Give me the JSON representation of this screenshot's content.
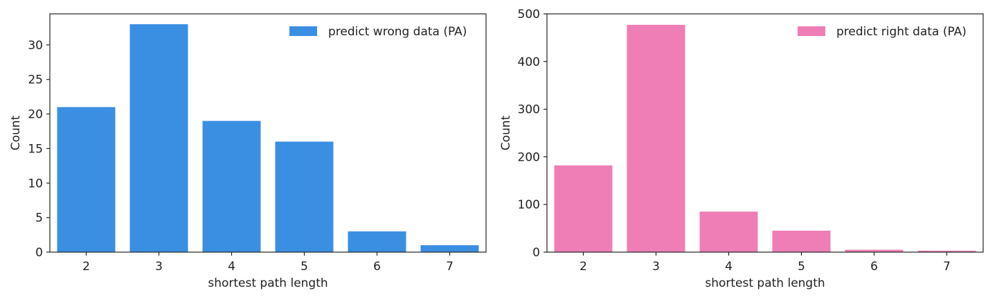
{
  "chart_data": [
    {
      "type": "bar",
      "title": "",
      "xlabel": "shortest path length",
      "ylabel": "Count",
      "categories": [
        "2",
        "3",
        "4",
        "5",
        "6",
        "7"
      ],
      "series": [
        {
          "name": "predict wrong data (PA)",
          "values": [
            21,
            33,
            19,
            16,
            3,
            1
          ],
          "color": "#3B8FE3"
        }
      ],
      "ylim": [
        0,
        34.5
      ],
      "yticks": [
        0,
        5,
        10,
        15,
        20,
        25,
        30
      ],
      "grid": false,
      "legend": "top-right"
    },
    {
      "type": "bar",
      "title": "",
      "xlabel": "shortest path length",
      "ylabel": "Count",
      "categories": [
        "2",
        "3",
        "4",
        "5",
        "6",
        "7"
      ],
      "series": [
        {
          "name": "predict right data (PA)",
          "values": [
            182,
            477,
            85,
            45,
            5,
            3
          ],
          "color": "#EE7EB5"
        }
      ],
      "ylim": [
        0,
        500
      ],
      "yticks": [
        0,
        100,
        200,
        300,
        400,
        500
      ],
      "grid": false,
      "legend": "top-right"
    }
  ]
}
